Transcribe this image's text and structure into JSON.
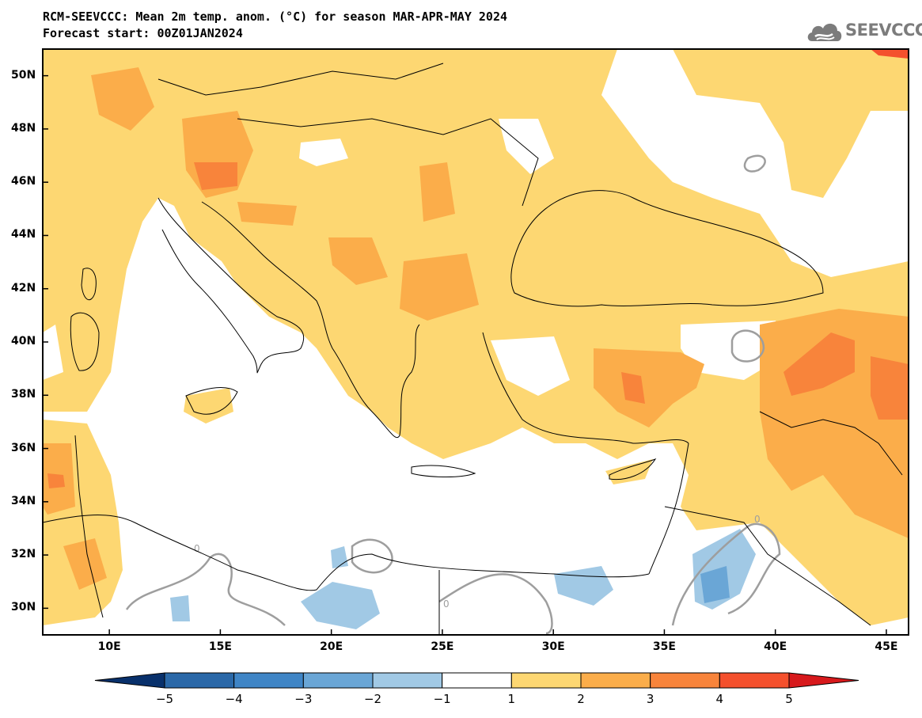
{
  "title_line1": "RCM-SEEVCCC: Mean 2m temp. anom. (°C) for season MAR-APR-MAY 2024",
  "title_line2": "Forecast start: 00Z01JAN2024",
  "logo_text": "SEEVCCC",
  "icons": {
    "logo": "cloud-logo-icon"
  },
  "map": {
    "lon_range": [
      7,
      46
    ],
    "lat_range": [
      29,
      51
    ],
    "lat_labels": [
      "50N",
      "48N",
      "46N",
      "44N",
      "42N",
      "40N",
      "38N",
      "36N",
      "34N",
      "32N",
      "30N"
    ],
    "lon_labels": [
      "10E",
      "15E",
      "20E",
      "25E",
      "30E",
      "35E",
      "40E",
      "45E"
    ],
    "contour_label": "0"
  },
  "colorbar": {
    "labels": [
      "−5",
      "−4",
      "−3",
      "−2",
      "−1",
      "1",
      "2",
      "3",
      "4",
      "5"
    ],
    "colors": [
      "#08306b",
      "#2a68a8",
      "#3f85c6",
      "#6aa6d6",
      "#a1c9e5",
      "#ffffff",
      "#fdd772",
      "#fbad4a",
      "#f8843b",
      "#f4502d",
      "#d7191c"
    ]
  }
}
